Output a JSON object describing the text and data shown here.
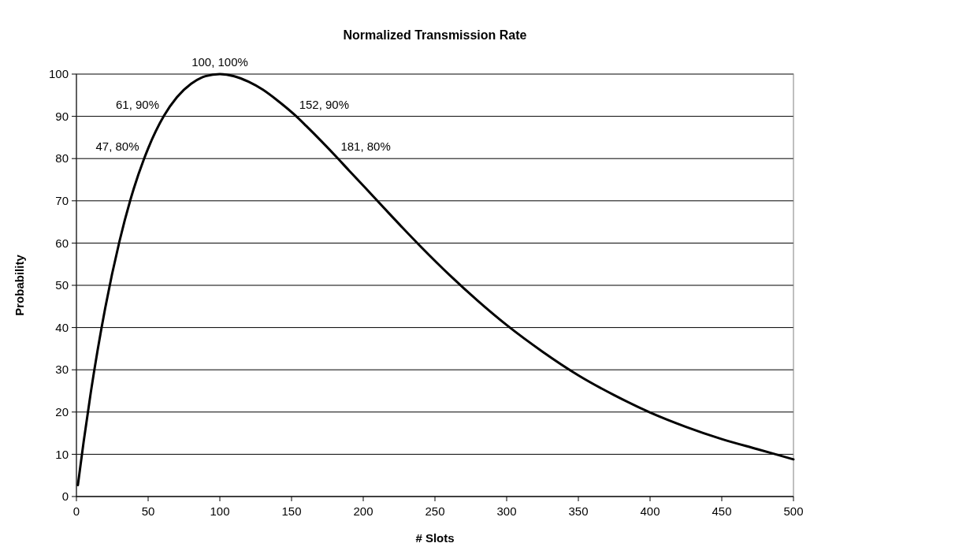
{
  "chart_data": {
    "type": "line",
    "title": "Normalized Transmission Rate",
    "xlabel": "# Slots",
    "ylabel": "Probability",
    "series": [
      {
        "color": "#000000",
        "x": [
          1,
          5,
          10,
          20,
          30,
          40,
          47,
          50,
          61,
          70,
          80,
          90,
          100,
          110,
          120,
          130,
          140,
          152,
          160,
          170,
          181,
          190,
          200,
          220,
          240,
          260,
          280,
          300,
          325,
          350,
          375,
          400,
          425,
          450,
          475,
          500
        ],
        "values": [
          2.7,
          12.9,
          24.6,
          44.5,
          60.4,
          72.9,
          79.8,
          82.4,
          90.1,
          94.5,
          97.7,
          99.5,
          100,
          99.5,
          98.2,
          96.3,
          93.8,
          90.4,
          87.8,
          84.4,
          80.5,
          77.2,
          73.6,
          66.3,
          59.2,
          52.5,
          46.3,
          40.6,
          34.3,
          28.7,
          24.0,
          19.9,
          16.5,
          13.6,
          11.2,
          8.8
        ]
      }
    ],
    "xlim": [
      0,
      500
    ],
    "xticks": [
      0,
      50,
      100,
      150,
      200,
      250,
      300,
      350,
      400,
      450,
      500
    ],
    "ylim": [
      0,
      100
    ],
    "yticks": [
      0,
      10,
      20,
      30,
      40,
      50,
      60,
      70,
      80,
      90,
      100
    ],
    "grid": "y",
    "marker": "none",
    "line_style": "solid",
    "annotations": [
      {
        "text": "100, 100%",
        "x": 100,
        "y": 100
      },
      {
        "text": "61, 90%",
        "x": 61,
        "y": 90
      },
      {
        "text": "47, 80%",
        "x": 47,
        "y": 80
      },
      {
        "text": "152, 90%",
        "x": 152,
        "y": 90
      },
      {
        "text": "181, 80%",
        "x": 181,
        "y": 80
      }
    ]
  }
}
